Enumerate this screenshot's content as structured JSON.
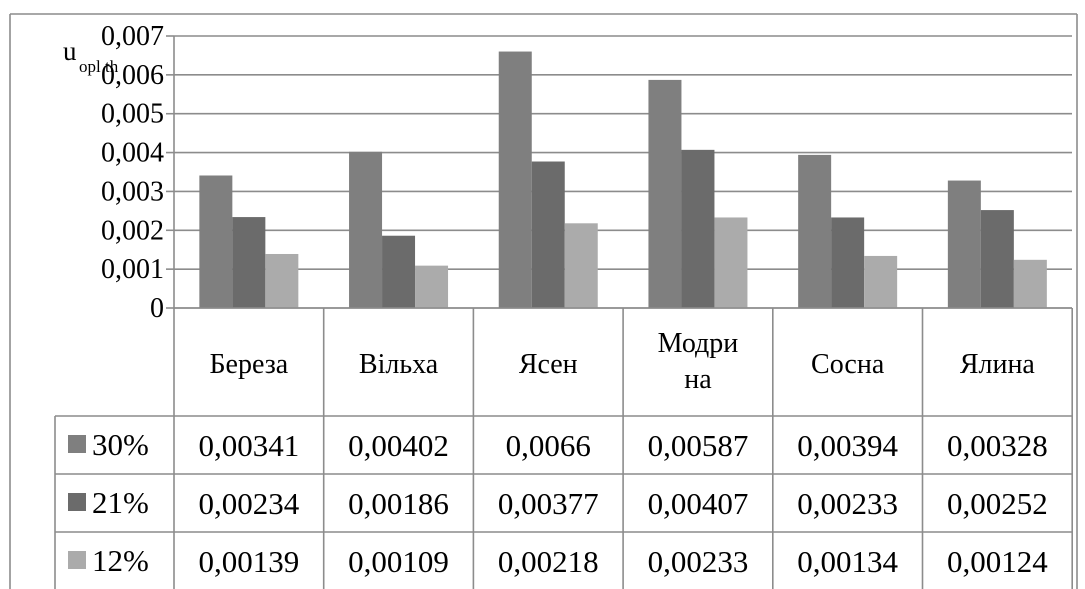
{
  "chart_data": {
    "type": "bar",
    "ylabel": "u",
    "ylabel_sub": "opl th",
    "categories": [
      "Береза",
      "Вільха",
      "Ясен",
      "Модрина",
      "Сосна",
      "Ялина"
    ],
    "category_lines": [
      [
        "Береза"
      ],
      [
        "Вільха"
      ],
      [
        "Ясен"
      ],
      [
        "Модри",
        "на"
      ],
      [
        "Сосна"
      ],
      [
        "Ялина"
      ]
    ],
    "series": [
      {
        "name": "30%",
        "color": "#7f7f7f",
        "values": [
          0.00341,
          0.00402,
          0.0066,
          0.00587,
          0.00394,
          0.00328
        ],
        "labels": [
          "0,00341",
          "0,00402",
          "0,0066",
          "0,00587",
          "0,00394",
          "0,00328"
        ]
      },
      {
        "name": "21%",
        "color": "#6b6b6b",
        "values": [
          0.00234,
          0.00186,
          0.00377,
          0.00407,
          0.00233,
          0.00252
        ],
        "labels": [
          "0,00234",
          "0,00186",
          "0,00377",
          "0,00407",
          "0,00233",
          "0,00252"
        ]
      },
      {
        "name": "12%",
        "color": "#ababab",
        "values": [
          0.00139,
          0.00109,
          0.00218,
          0.00233,
          0.00134,
          0.00124
        ],
        "labels": [
          "0,00139",
          "0,00109",
          "0,00218",
          "0,00233",
          "0,00134",
          "0,00124"
        ]
      }
    ],
    "ylim": [
      0,
      0.007
    ],
    "yticks": [
      0,
      0.001,
      0.002,
      0.003,
      0.004,
      0.005,
      0.006,
      0.007
    ],
    "ytick_labels": [
      "0",
      "0,001",
      "0,002",
      "0,003",
      "0,004",
      "0,005",
      "0,006",
      "0,007"
    ],
    "grid": true,
    "legend": "data-table"
  }
}
